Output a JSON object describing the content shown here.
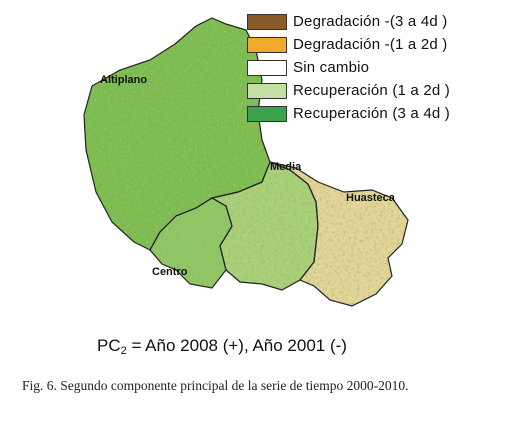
{
  "legend": {
    "items": [
      {
        "label": "Degradación -(3 a 4d )",
        "color": "#8b5a2b"
      },
      {
        "label": "Degradación -(1 a 2d )",
        "color": "#f0a928"
      },
      {
        "label": "Sin cambio",
        "color": "#ffffff"
      },
      {
        "label": "Recuperación (1 a 2d )",
        "color": "#c3dfa4"
      },
      {
        "label": "Recuperación (3 a 4d )",
        "color": "#3ba34a"
      }
    ]
  },
  "regions": {
    "altiplano": "Altiplano",
    "media": "Media",
    "huasteca": "Huasteca",
    "centro": "Centro"
  },
  "formula": {
    "pc_prefix": "PC",
    "pc_subscript": "2",
    "rest": " = Año 2008 (+), Año 2001 (-)"
  },
  "caption": "Fig. 6. Segundo componente principal de la serie de tiempo 2000-2010.",
  "colors": {
    "altiplano_fill": "#7cbb4e",
    "centro_fill": "#8fc563",
    "media_fill": "#a9cf78",
    "huasteca_fill": "#e8d49a",
    "boundary": "#222222"
  }
}
